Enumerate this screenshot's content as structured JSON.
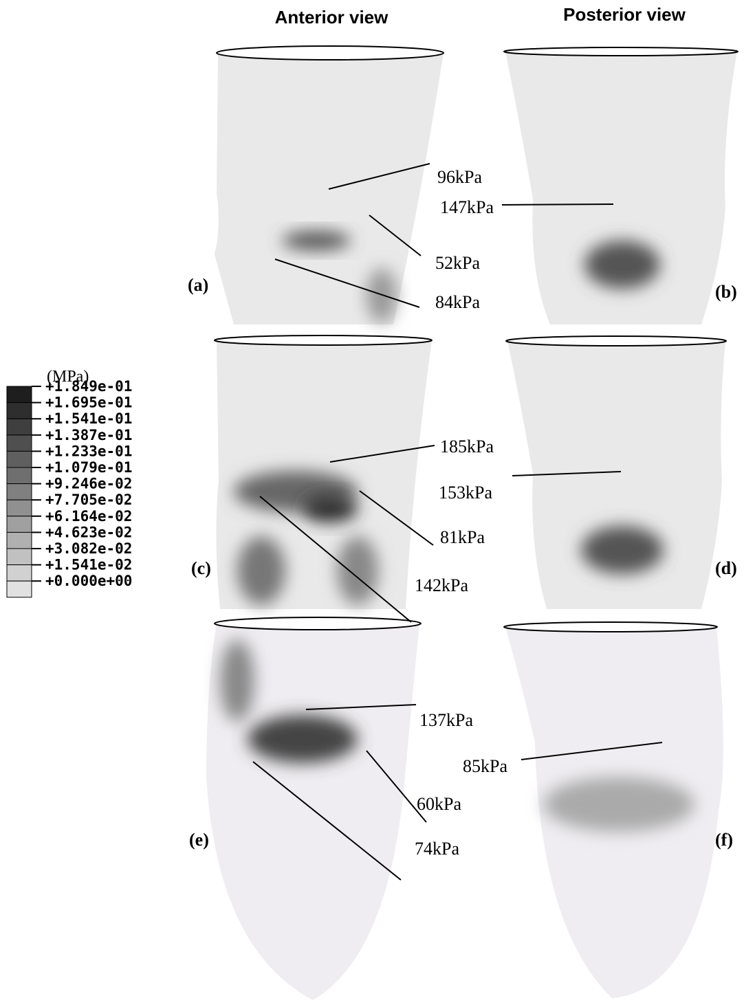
{
  "headers": [
    "Anterior view",
    "Posterior view"
  ],
  "legend": {
    "unit": "(MPa)",
    "labels": [
      "+1.849e-01",
      "+1.695e-01",
      "+1.541e-01",
      "+1.387e-01",
      "+1.233e-01",
      "+1.079e-01",
      "+9.246e-02",
      "+7.705e-02",
      "+6.164e-02",
      "+4.623e-02",
      "+3.082e-02",
      "+1.541e-02",
      "+0.000e+00"
    ]
  },
  "panels": [
    {
      "label": "(a)",
      "annotations": [
        "96kPa",
        "52kPa",
        "84kPa"
      ]
    },
    {
      "label": "(b)",
      "annotations": [
        "147kPa"
      ]
    },
    {
      "label": "(c)",
      "annotations": [
        "185kPa",
        "81kPa",
        "142kPa"
      ]
    },
    {
      "label": "(d)",
      "annotations": [
        "153kPa"
      ]
    },
    {
      "label": "(e)",
      "annotations": [
        "137kPa",
        "60kPa",
        "74kPa"
      ]
    },
    {
      "label": "(f)",
      "annotations": [
        "85kPa"
      ]
    }
  ]
}
